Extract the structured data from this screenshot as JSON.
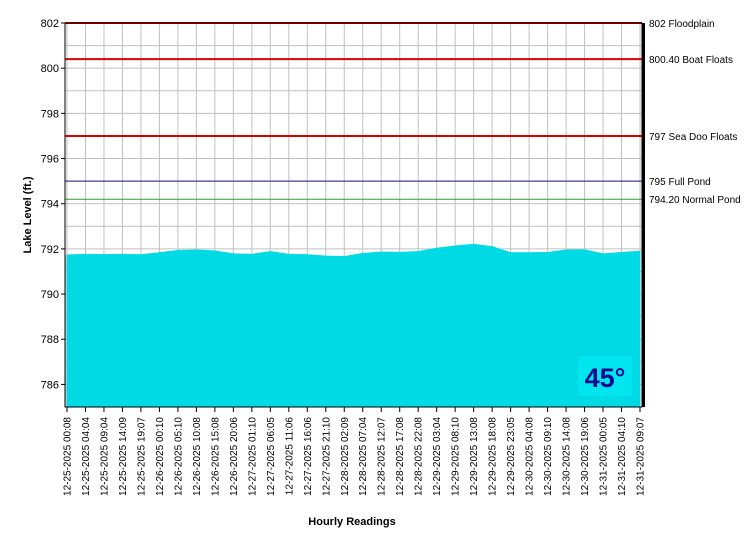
{
  "chart_data": {
    "type": "area",
    "xlabel": "Hourly Readings",
    "ylabel": "Lake Level (ft.)",
    "ylim": [
      785,
      802
    ],
    "yticks": [
      786,
      788,
      790,
      792,
      794,
      796,
      798,
      800,
      802
    ],
    "grid": true,
    "categories": [
      "12-25-2025 00:08",
      "12-25-2025 04:04",
      "12-25-2025 09:04",
      "12-25-2025 14:09",
      "12-25-2025 19:07",
      "12-26-2025 00:10",
      "12-26-2025 05:10",
      "12-26-2025 10:08",
      "12-26-2025 15:08",
      "12-26-2025 20:06",
      "12-27-2025 01:10",
      "12-27-2025 06:05",
      "12-27-2025 11:06",
      "12-27-2025 16:06",
      "12-27-2025 21:10",
      "12-28-2025 02:09",
      "12-28-2025 07:04",
      "12-28-2025 12:07",
      "12-28-2025 17:08",
      "12-28-2025 22:08",
      "12-29-2025 03:04",
      "12-29-2025 08:10",
      "12-29-2025 13:08",
      "12-29-2025 18:08",
      "12-29-2025 23:05",
      "12-30-2025 04:08",
      "12-30-2025 09:10",
      "12-30-2025 14:08",
      "12-30-2025 19:06",
      "12-31-2025 00:05",
      "12-31-2025 04:10",
      "12-31-2025 09:07"
    ],
    "series": [
      {
        "color": "#00e5ee",
        "values": [
          791.75,
          791.78,
          791.77,
          791.78,
          791.76,
          791.85,
          791.95,
          791.97,
          791.93,
          791.8,
          791.78,
          791.9,
          791.78,
          791.76,
          791.7,
          791.68,
          791.82,
          791.88,
          791.87,
          791.9,
          792.05,
          792.15,
          792.22,
          792.12,
          791.85,
          791.85,
          791.86,
          791.97,
          791.98,
          791.8,
          791.86,
          791.92
        ]
      }
    ],
    "reference_lines": [
      {
        "value": 802,
        "label": "802 Floodplain",
        "color": "#dd0000"
      },
      {
        "value": 800.4,
        "label": "800.40 Boat Floats",
        "color": "#dd0000"
      },
      {
        "value": 797,
        "label": "797 Sea Doo Floats",
        "color": "#dd0000"
      },
      {
        "value": 795,
        "label": "795 Full Pond",
        "color": "#1a1a8c"
      },
      {
        "value": 794.2,
        "label": "794.20 Normal Pond",
        "color": "#339933"
      }
    ],
    "badge": {
      "text": "45°",
      "background": "#00e5ee",
      "color": "#0a0a8c"
    }
  }
}
